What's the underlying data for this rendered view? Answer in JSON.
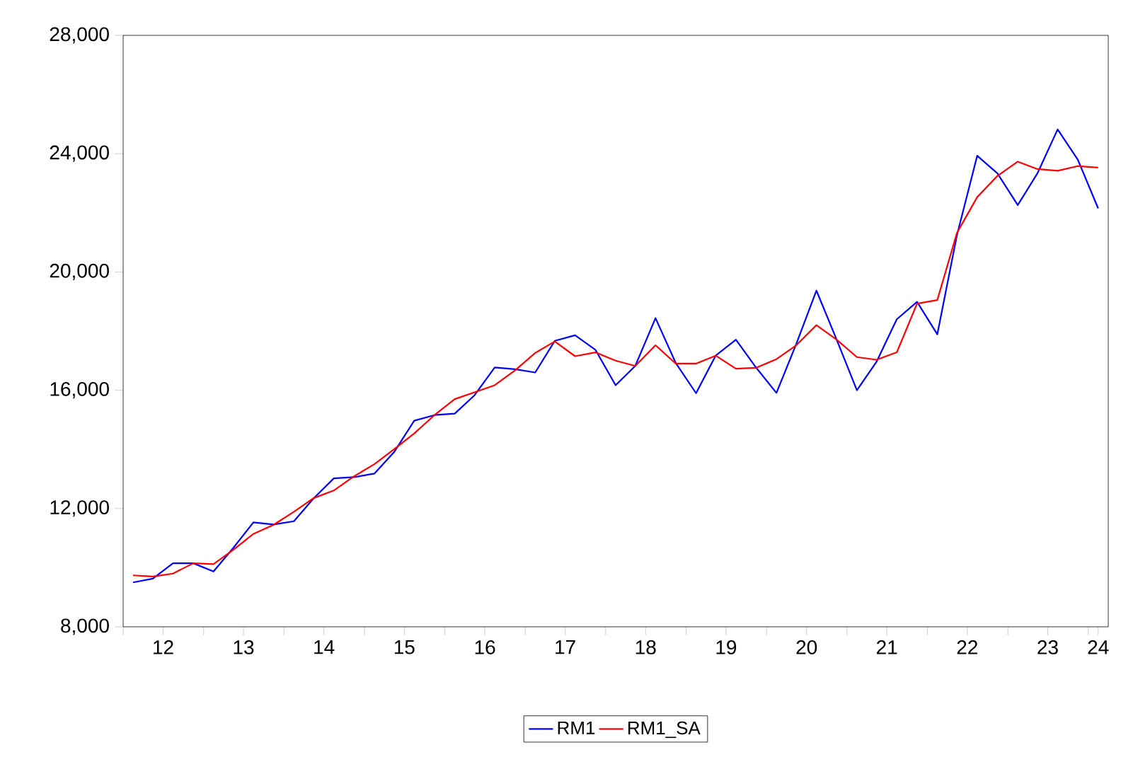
{
  "chart_data": {
    "type": "line",
    "x": [
      "2012-02-15",
      "2012-05-15",
      "2012-08-15",
      "2012-11-15",
      "2013-02-15",
      "2013-05-15",
      "2013-08-15",
      "2013-11-15",
      "2014-02-15",
      "2014-05-15",
      "2014-08-15",
      "2014-11-15",
      "2015-02-15",
      "2015-05-15",
      "2015-08-15",
      "2015-11-15",
      "2016-02-15",
      "2016-05-15",
      "2016-08-15",
      "2016-11-15",
      "2017-02-15",
      "2017-05-15",
      "2017-08-15",
      "2017-11-15",
      "2018-02-15",
      "2018-05-15",
      "2018-08-15",
      "2018-11-15",
      "2019-02-15",
      "2019-05-15",
      "2019-08-15",
      "2019-11-15",
      "2020-02-15",
      "2020-05-15",
      "2020-08-15",
      "2020-11-15",
      "2021-02-15",
      "2021-05-15",
      "2021-08-15",
      "2021-11-15",
      "2022-02-15",
      "2022-05-15",
      "2022-08-15",
      "2022-11-15",
      "2023-02-15",
      "2023-05-15",
      "2023-08-15",
      "2023-11-15",
      "2024-02-15"
    ],
    "series": [
      {
        "name": "RM1",
        "color": "#0000ff",
        "values": [
          9500,
          9630,
          10150,
          10150,
          9870,
          10660,
          11530,
          11460,
          11570,
          12340,
          13020,
          13060,
          13180,
          13900,
          14970,
          15160,
          15210,
          15830,
          16770,
          16710,
          16600,
          17670,
          17860,
          17370,
          16170,
          16820,
          18440,
          16920,
          15900,
          17170,
          17710,
          16760,
          15910,
          17560,
          19370,
          17710,
          16000,
          16960,
          18400,
          18990,
          17890,
          21240,
          23930,
          23330,
          22260,
          23330,
          24820,
          23790,
          22150
        ]
      },
      {
        "name": "RM1_SA",
        "color": "#ff0000",
        "values": [
          9740,
          9700,
          9800,
          10150,
          10120,
          10600,
          11140,
          11450,
          11890,
          12350,
          12610,
          13090,
          13500,
          14000,
          14540,
          15160,
          15700,
          15930,
          16170,
          16670,
          17260,
          17650,
          17150,
          17280,
          17000,
          16820,
          17520,
          16900,
          16900,
          17170,
          16730,
          16760,
          17050,
          17520,
          18200,
          17710,
          17120,
          17030,
          17280,
          18930,
          19050,
          21320,
          22530,
          23250,
          23730,
          23480,
          23420,
          23580,
          23530
        ]
      }
    ],
    "xlim": [
      "2012-01-01",
      "2024-04-01"
    ],
    "xticks": [
      {
        "value": "2012-01-01",
        "label": null
      },
      {
        "value": "2012-07-01",
        "label": "12"
      },
      {
        "value": "2013-01-01",
        "label": null
      },
      {
        "value": "2013-07-01",
        "label": "13"
      },
      {
        "value": "2014-01-01",
        "label": null
      },
      {
        "value": "2014-07-01",
        "label": "14"
      },
      {
        "value": "2015-01-01",
        "label": null
      },
      {
        "value": "2015-07-01",
        "label": "15"
      },
      {
        "value": "2016-01-01",
        "label": null
      },
      {
        "value": "2016-07-01",
        "label": "16"
      },
      {
        "value": "2017-01-01",
        "label": null
      },
      {
        "value": "2017-07-01",
        "label": "17"
      },
      {
        "value": "2018-01-01",
        "label": null
      },
      {
        "value": "2018-07-01",
        "label": "18"
      },
      {
        "value": "2019-01-01",
        "label": null
      },
      {
        "value": "2019-07-01",
        "label": "19"
      },
      {
        "value": "2020-01-01",
        "label": null
      },
      {
        "value": "2020-07-01",
        "label": "20"
      },
      {
        "value": "2021-01-01",
        "label": null
      },
      {
        "value": "2021-07-01",
        "label": "21"
      },
      {
        "value": "2022-01-01",
        "label": null
      },
      {
        "value": "2022-07-01",
        "label": "22"
      },
      {
        "value": "2023-01-01",
        "label": null
      },
      {
        "value": "2023-07-01",
        "label": "23"
      },
      {
        "value": "2024-01-01",
        "label": null
      },
      {
        "value": "2024-02-15",
        "label": "24"
      }
    ],
    "ylim": [
      8000,
      28000
    ],
    "yticks": [
      {
        "value": 8000,
        "label": "8,000"
      },
      {
        "value": 12000,
        "label": "12,000"
      },
      {
        "value": 16000,
        "label": "16,000"
      },
      {
        "value": 20000,
        "label": "20,000"
      },
      {
        "value": 24000,
        "label": "24,000"
      },
      {
        "value": 28000,
        "label": "28,000"
      }
    ],
    "legend": "bottom",
    "marker": "none",
    "line_style": "solid"
  }
}
